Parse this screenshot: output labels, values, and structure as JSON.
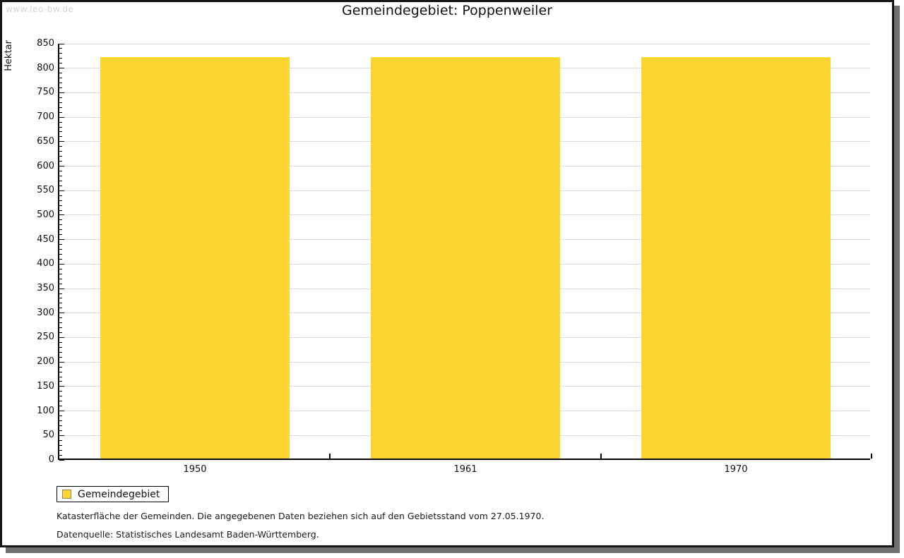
{
  "watermark": "www.leo-bw.de",
  "header": {
    "title": "Gemeindegebiet: Poppenweiler"
  },
  "chart_data": {
    "type": "bar",
    "title": "Gemeindegebiet: Poppenweiler",
    "categories": [
      "1950",
      "1961",
      "1970"
    ],
    "series": [
      {
        "name": "Gemeindegebiet",
        "values": [
          820,
          820,
          820
        ]
      }
    ],
    "xlabel": "",
    "ylabel": "Hektar",
    "ylim": [
      0,
      850
    ],
    "ytick_step": 50,
    "yminor_step": 10,
    "grid": true,
    "legend_position": "bottom-left",
    "bar_color": "#fdd530"
  },
  "legend": {
    "items": [
      {
        "label": "Gemeindegebiet",
        "color": "#fdd530"
      }
    ]
  },
  "footer": {
    "line1": "Katasterfläche der Gemeinden. Die angegebenen Daten beziehen sich auf den Gebietsstand vom 27.05.1970.",
    "line2": "Datenquelle: Statistisches Landesamt Baden-Württemberg."
  },
  "colors": {
    "bar": "#fdd530",
    "grid": "#dcdcdc",
    "axis": "#000000",
    "watermark": "#d5d5d5",
    "frame_border": "#151515",
    "frame_shadow": "#6f6f6f",
    "legend_swatch_border": "#8b8b6b"
  }
}
